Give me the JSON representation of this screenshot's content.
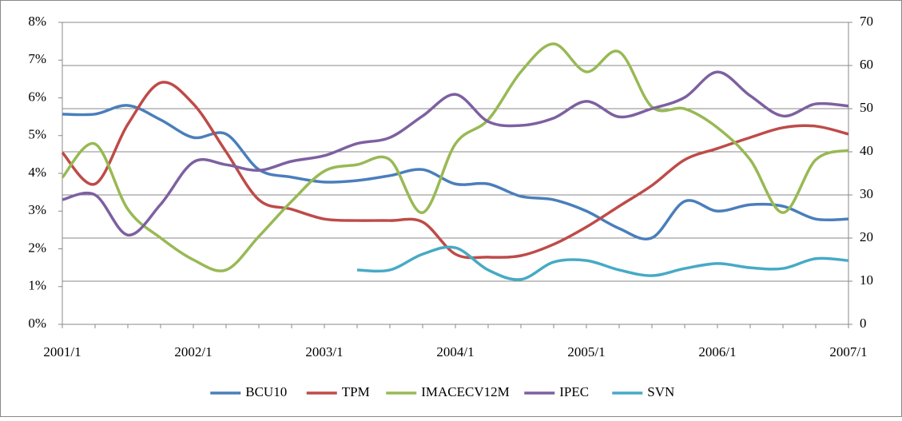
{
  "chart_data": {
    "type": "line",
    "categories": [
      "2001/1",
      null,
      null,
      null,
      "2002/1",
      null,
      null,
      null,
      "2003/1",
      null,
      null,
      null,
      "2004/1",
      null,
      null,
      null,
      "2005/1",
      null,
      null,
      null,
      "2006/1",
      null,
      null,
      null,
      "2007/1"
    ],
    "ylim": [
      0,
      8
    ],
    "yticks": [
      {
        "value": 0,
        "label": "0%"
      },
      {
        "value": 1,
        "label": "1%"
      },
      {
        "value": 2,
        "label": "2%"
      },
      {
        "value": 3,
        "label": "3%"
      },
      {
        "value": 4,
        "label": "4%"
      },
      {
        "value": 5,
        "label": "5%"
      },
      {
        "value": 6,
        "label": "6%"
      },
      {
        "value": 7,
        "label": "7%"
      },
      {
        "value": 8,
        "label": "8%"
      }
    ],
    "y2lim": [
      0,
      70
    ],
    "y2ticks": [
      0,
      10,
      20,
      30,
      40,
      50,
      60,
      70
    ],
    "grid": "y2",
    "legend": "bottom",
    "series": [
      {
        "name": "BCU10",
        "color": "#4a7ebb",
        "values": [
          5.57,
          5.57,
          5.8,
          5.42,
          4.95,
          5.04,
          4.1,
          3.9,
          3.77,
          3.81,
          3.94,
          4.1,
          3.72,
          3.72,
          3.39,
          3.3,
          3.0,
          2.54,
          2.29,
          3.26,
          3.0,
          3.17,
          3.13,
          2.79,
          2.79
        ]
      },
      {
        "name": "TPM",
        "color": "#be4b48",
        "values": [
          4.55,
          3.72,
          5.3,
          6.4,
          5.84,
          4.57,
          3.3,
          3.05,
          2.79,
          2.75,
          2.75,
          2.71,
          1.86,
          1.78,
          1.82,
          2.12,
          2.58,
          3.13,
          3.68,
          4.36,
          4.66,
          4.95,
          5.21,
          5.25,
          5.04
        ]
      },
      {
        "name": "IMACECV12M",
        "color": "#98b954",
        "values": [
          3.89,
          4.78,
          3.05,
          2.29,
          1.71,
          1.44,
          2.33,
          3.26,
          4.06,
          4.23,
          4.36,
          2.96,
          4.78,
          5.42,
          6.69,
          7.43,
          6.69,
          7.22,
          5.76,
          5.71,
          5.21,
          4.36,
          2.96,
          4.36,
          4.61
        ]
      },
      {
        "name": "IPEC",
        "color": "#7d60a0",
        "axis": "y2",
        "values": [
          28.9,
          30,
          20.7,
          27.8,
          37.6,
          37,
          35.7,
          37.8,
          39.1,
          41.9,
          43.3,
          48.3,
          53.3,
          47,
          46.1,
          47.8,
          51.7,
          48.1,
          50,
          52.6,
          58.5,
          53,
          48.3,
          51.1,
          50.6
        ]
      },
      {
        "name": "SVN",
        "color": "#46aac5",
        "values": [
          null,
          null,
          null,
          null,
          null,
          null,
          null,
          null,
          null,
          1.44,
          1.44,
          1.86,
          2.03,
          1.44,
          1.19,
          1.65,
          1.69,
          1.44,
          1.29,
          1.48,
          1.61,
          1.5,
          1.48,
          1.74,
          1.69
        ]
      }
    ]
  }
}
